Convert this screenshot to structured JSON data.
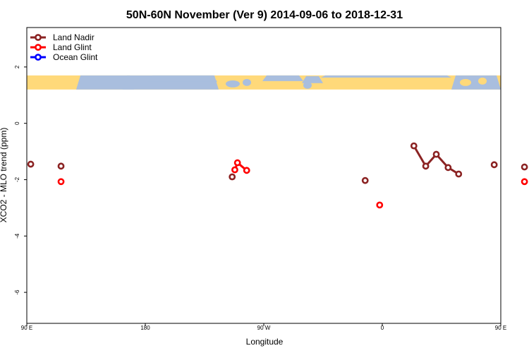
{
  "colors": {
    "land_nadir": "#8b2323",
    "land_glint": "#ff0000",
    "ocean_glint": "#0000ff",
    "map_land": "#ffd97a",
    "map_ocean": "#a9bede"
  },
  "chart_data": {
    "type": "scatter",
    "title": "50N-60N November (Ver 9)   2014-09-06 to 2018-12-31",
    "xlabel": "Longitude",
    "ylabel": "XCO2 - MLO trend (ppm)",
    "xlim": [
      90,
      450
    ],
    "ylim": [
      -7.1,
      3.4
    ],
    "x_ticks": [
      {
        "value": 90,
        "label": "90 E"
      },
      {
        "value": 180,
        "label": "180"
      },
      {
        "value": 270,
        "label": "90 W"
      },
      {
        "value": 360,
        "label": "0"
      },
      {
        "value": 450,
        "label": "90 E"
      },
      {
        "value": 540,
        "label": "180"
      }
    ],
    "y_ticks": [
      {
        "value": 2,
        "label": "2"
      },
      {
        "value": 0,
        "label": "0"
      },
      {
        "value": -2,
        "label": "-2"
      },
      {
        "value": -4,
        "label": "-4"
      },
      {
        "value": -6,
        "label": "-6"
      }
    ],
    "legend_position": "top-left",
    "map_band": [
      1.2,
      1.7
    ],
    "series": [
      {
        "name": "Land Nadir",
        "color_key": "land_nadir",
        "segments": [
          [
            {
              "x": 93,
              "y": -1.45
            }
          ],
          [
            {
              "x": 116,
              "y": -1.52
            }
          ],
          [
            {
              "x": 246,
              "y": -1.9
            }
          ],
          [
            {
              "x": 347,
              "y": -2.03
            }
          ],
          [
            {
              "x": 384,
              "y": -0.8
            },
            {
              "x": 393,
              "y": -1.52
            },
            {
              "x": 401,
              "y": -1.1
            },
            {
              "x": 410,
              "y": -1.57
            },
            {
              "x": 418,
              "y": -1.8
            }
          ],
          [
            {
              "x": 445,
              "y": -1.47
            }
          ],
          [
            {
              "x": 468,
              "y": -1.55
            }
          ]
        ]
      },
      {
        "name": "Land Glint",
        "color_key": "land_glint",
        "segments": [
          [
            {
              "x": 116,
              "y": -2.07
            }
          ],
          [
            {
              "x": 248,
              "y": -1.65
            },
            {
              "x": 250,
              "y": -1.4
            },
            {
              "x": 257,
              "y": -1.67
            }
          ],
          [
            {
              "x": 358,
              "y": -2.9
            }
          ],
          [
            {
              "x": 468,
              "y": -2.07
            }
          ]
        ]
      },
      {
        "name": "Ocean Glint",
        "color_key": "ocean_glint",
        "segments": []
      }
    ]
  }
}
